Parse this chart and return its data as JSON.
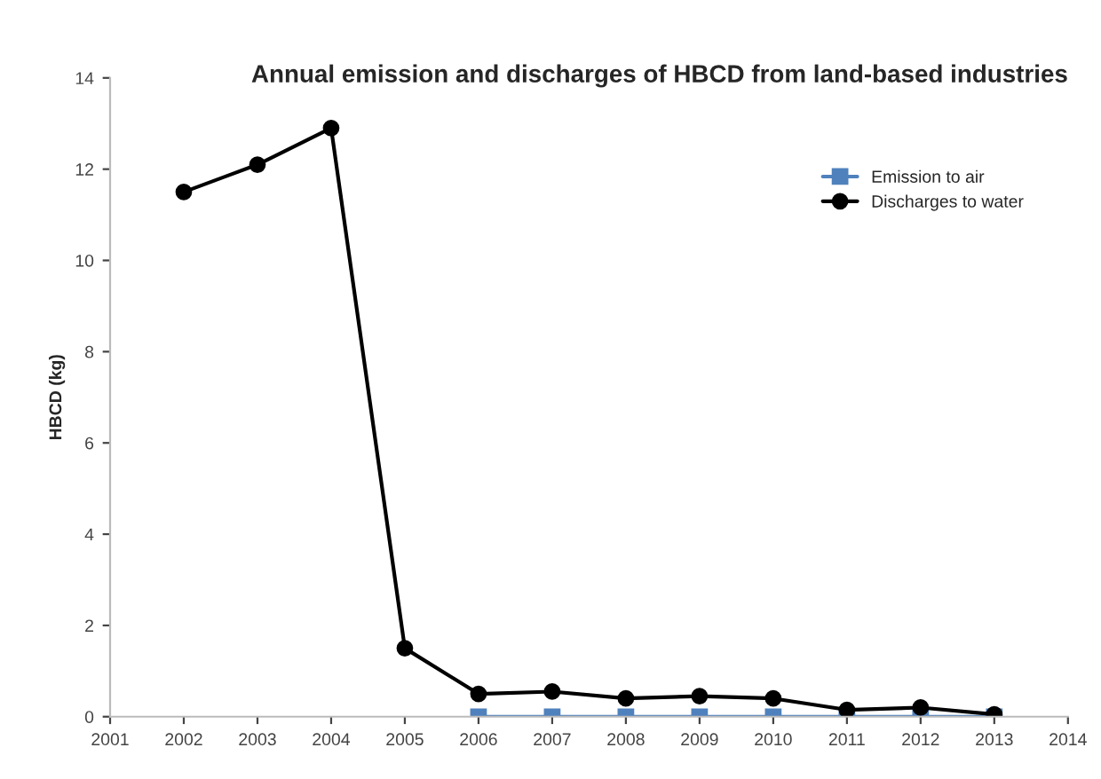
{
  "chart_data": {
    "type": "line",
    "title": "Annual emission and discharges of HBCD from land-based industries",
    "ylabel": "HBCD (kg)",
    "x": [
      2002,
      2003,
      2004,
      2005,
      2006,
      2007,
      2008,
      2009,
      2010,
      2011,
      2012,
      2013
    ],
    "series": [
      {
        "name": "Emission to air",
        "color": "#4f81bd",
        "marker": "square",
        "x": [
          2006,
          2007,
          2008,
          2009,
          2010,
          2011,
          2012,
          2013
        ],
        "values": [
          0,
          0,
          0,
          0,
          0,
          0,
          0,
          0
        ]
      },
      {
        "name": "Discharges to water",
        "color": "#000000",
        "marker": "circle",
        "values": [
          11.5,
          12.1,
          12.9,
          1.5,
          0.5,
          0.55,
          0.4,
          0.45,
          0.4,
          0.15,
          0.2,
          0.05
        ]
      }
    ],
    "xlim": [
      2001,
      2014
    ],
    "xticks": [
      2001,
      2002,
      2003,
      2004,
      2005,
      2006,
      2007,
      2008,
      2009,
      2010,
      2011,
      2012,
      2013,
      2014
    ],
    "ylim": [
      0,
      14
    ],
    "yticks": [
      0,
      2,
      4,
      6,
      8,
      10,
      12,
      14
    ],
    "grid": false,
    "legend": "top right",
    "line_style": "solid"
  }
}
